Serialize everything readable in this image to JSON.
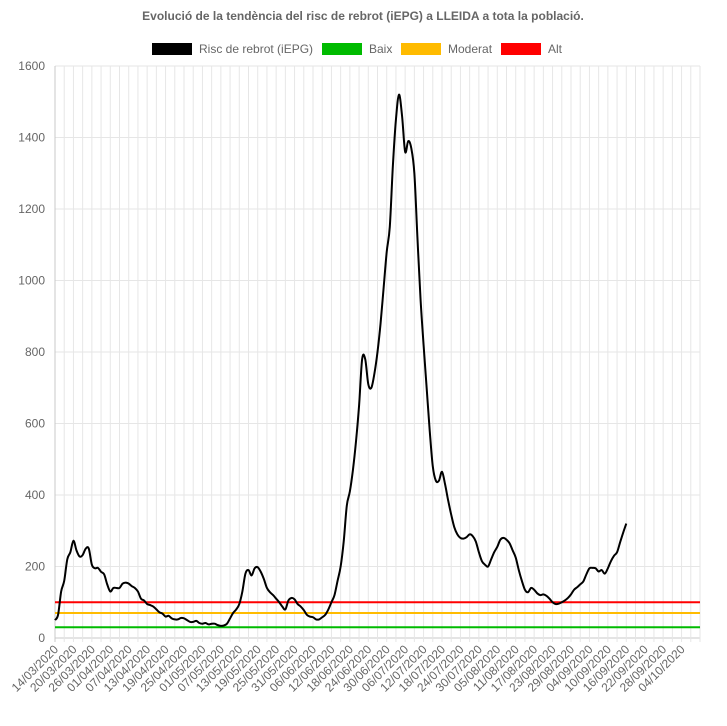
{
  "chart_data": {
    "type": "line",
    "title": "Evolució de la tendència del risc de rebrot (iEPG) a LLEIDA a tota la població.",
    "xlabel": "",
    "ylabel": "",
    "ylim": [
      0,
      1600
    ],
    "yticks": [
      0,
      200,
      400,
      600,
      800,
      1000,
      1200,
      1400,
      1600
    ],
    "grid": true,
    "legend_position": "top",
    "x_tick_labels": [
      "14/03/2020",
      "20/03/2020",
      "26/03/2020",
      "01/04/2020",
      "07/04/2020",
      "13/04/2020",
      "19/04/2020",
      "25/04/2020",
      "01/05/2020",
      "07/05/2020",
      "13/05/2020",
      "19/05/2020",
      "25/05/2020",
      "31/05/2020",
      "06/06/2020",
      "12/06/2020",
      "18/06/2020",
      "24/06/2020",
      "30/06/2020",
      "06/07/2020",
      "12/07/2020",
      "18/07/2020",
      "24/07/2020",
      "30/07/2020",
      "05/08/2020",
      "11/08/2020",
      "17/08/2020",
      "23/08/2020",
      "29/08/2020",
      "04/09/2020",
      "10/09/2020",
      "16/09/2020",
      "22/09/2020",
      "28/09/2020",
      "04/10/2020"
    ],
    "x_day_range": [
      0,
      210
    ],
    "series": [
      {
        "name": "Risc de rebrot (iEPG)",
        "color": "#000000",
        "points": [
          [
            0,
            50
          ],
          [
            1,
            65
          ],
          [
            2,
            130
          ],
          [
            3,
            160
          ],
          [
            4,
            220
          ],
          [
            5,
            240
          ],
          [
            6,
            272
          ],
          [
            7,
            245
          ],
          [
            8,
            228
          ],
          [
            9,
            232
          ],
          [
            10,
            250
          ],
          [
            11,
            250
          ],
          [
            12,
            205
          ],
          [
            13,
            195
          ],
          [
            14,
            196
          ],
          [
            15,
            185
          ],
          [
            16,
            178
          ],
          [
            17,
            150
          ],
          [
            18,
            130
          ],
          [
            19,
            140
          ],
          [
            20,
            140
          ],
          [
            21,
            140
          ],
          [
            22,
            152
          ],
          [
            23,
            155
          ],
          [
            24,
            152
          ],
          [
            25,
            145
          ],
          [
            26,
            140
          ],
          [
            27,
            130
          ],
          [
            28,
            110
          ],
          [
            29,
            105
          ],
          [
            30,
            95
          ],
          [
            31,
            92
          ],
          [
            32,
            88
          ],
          [
            33,
            80
          ],
          [
            34,
            72
          ],
          [
            35,
            68
          ],
          [
            36,
            60
          ],
          [
            37,
            62
          ],
          [
            38,
            55
          ],
          [
            39,
            52
          ],
          [
            40,
            52
          ],
          [
            41,
            56
          ],
          [
            42,
            55
          ],
          [
            43,
            50
          ],
          [
            44,
            45
          ],
          [
            45,
            45
          ],
          [
            46,
            48
          ],
          [
            47,
            42
          ],
          [
            48,
            40
          ],
          [
            49,
            42
          ],
          [
            50,
            38
          ],
          [
            51,
            40
          ],
          [
            52,
            40
          ],
          [
            53,
            36
          ],
          [
            54,
            34
          ],
          [
            55,
            35
          ],
          [
            56,
            40
          ],
          [
            57,
            55
          ],
          [
            58,
            70
          ],
          [
            59,
            80
          ],
          [
            60,
            95
          ],
          [
            61,
            130
          ],
          [
            62,
            180
          ],
          [
            63,
            190
          ],
          [
            64,
            175
          ],
          [
            65,
            195
          ],
          [
            66,
            198
          ],
          [
            67,
            185
          ],
          [
            68,
            165
          ],
          [
            69,
            140
          ],
          [
            70,
            128
          ],
          [
            71,
            120
          ],
          [
            72,
            110
          ],
          [
            73,
            100
          ],
          [
            74,
            88
          ],
          [
            75,
            80
          ],
          [
            76,
            105
          ],
          [
            77,
            112
          ],
          [
            78,
            108
          ],
          [
            79,
            95
          ],
          [
            80,
            88
          ],
          [
            81,
            78
          ],
          [
            82,
            65
          ],
          [
            83,
            60
          ],
          [
            84,
            58
          ],
          [
            85,
            52
          ],
          [
            86,
            52
          ],
          [
            87,
            58
          ],
          [
            88,
            65
          ],
          [
            89,
            80
          ],
          [
            90,
            100
          ],
          [
            91,
            120
          ],
          [
            92,
            160
          ],
          [
            93,
            200
          ],
          [
            94,
            270
          ],
          [
            95,
            370
          ],
          [
            96,
            410
          ],
          [
            97,
            470
          ],
          [
            98,
            550
          ],
          [
            99,
            650
          ],
          [
            100,
            780
          ],
          [
            101,
            780
          ],
          [
            102,
            710
          ],
          [
            103,
            700
          ],
          [
            104,
            740
          ],
          [
            105,
            800
          ],
          [
            106,
            880
          ],
          [
            107,
            980
          ],
          [
            108,
            1080
          ],
          [
            109,
            1150
          ],
          [
            110,
            1320
          ],
          [
            111,
            1450
          ],
          [
            112,
            1520
          ],
          [
            113,
            1460
          ],
          [
            114,
            1360
          ],
          [
            115,
            1390
          ],
          [
            116,
            1370
          ],
          [
            117,
            1300
          ],
          [
            118,
            1120
          ],
          [
            119,
            950
          ],
          [
            120,
            820
          ],
          [
            121,
            700
          ],
          [
            122,
            580
          ],
          [
            123,
            480
          ],
          [
            124,
            440
          ],
          [
            125,
            440
          ],
          [
            126,
            465
          ],
          [
            127,
            430
          ],
          [
            128,
            385
          ],
          [
            129,
            345
          ],
          [
            130,
            310
          ],
          [
            131,
            290
          ],
          [
            132,
            280
          ],
          [
            133,
            278
          ],
          [
            134,
            282
          ],
          [
            135,
            290
          ],
          [
            136,
            285
          ],
          [
            137,
            270
          ],
          [
            138,
            240
          ],
          [
            139,
            215
          ],
          [
            140,
            205
          ],
          [
            141,
            200
          ],
          [
            142,
            220
          ],
          [
            143,
            240
          ],
          [
            144,
            255
          ],
          [
            145,
            275
          ],
          [
            146,
            280
          ],
          [
            147,
            275
          ],
          [
            148,
            265
          ],
          [
            149,
            245
          ],
          [
            150,
            225
          ],
          [
            151,
            190
          ],
          [
            152,
            160
          ],
          [
            153,
            135
          ],
          [
            154,
            128
          ],
          [
            155,
            140
          ],
          [
            156,
            135
          ],
          [
            157,
            125
          ],
          [
            158,
            120
          ],
          [
            159,
            122
          ],
          [
            160,
            118
          ],
          [
            161,
            110
          ],
          [
            162,
            100
          ],
          [
            163,
            95
          ],
          [
            164,
            96
          ],
          [
            165,
            100
          ],
          [
            166,
            105
          ],
          [
            167,
            112
          ],
          [
            168,
            122
          ],
          [
            169,
            135
          ],
          [
            170,
            142
          ],
          [
            171,
            150
          ],
          [
            172,
            158
          ],
          [
            173,
            178
          ],
          [
            174,
            195
          ],
          [
            175,
            196
          ],
          [
            176,
            195
          ],
          [
            177,
            186
          ],
          [
            178,
            190
          ],
          [
            179,
            180
          ],
          [
            180,
            195
          ],
          [
            181,
            215
          ],
          [
            182,
            230
          ],
          [
            183,
            240
          ],
          [
            184,
            268
          ],
          [
            185,
            295
          ],
          [
            186,
            320
          ]
        ]
      },
      {
        "name": "Baix",
        "color": "#00bb00",
        "constant": 30
      },
      {
        "name": "Moderat",
        "color": "#ffbb00",
        "constant": 70
      },
      {
        "name": "Alt",
        "color": "#ff0000",
        "constant": 100
      }
    ]
  }
}
